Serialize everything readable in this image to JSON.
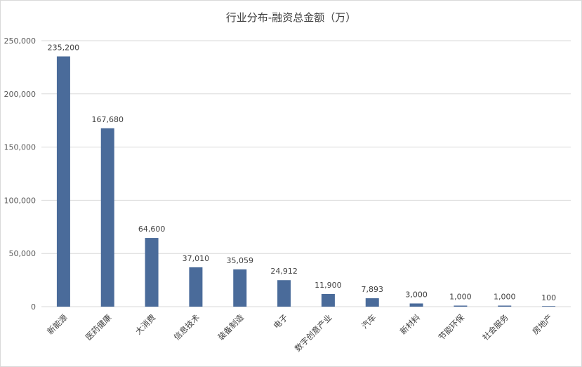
{
  "chart_data": {
    "type": "bar",
    "title": "行业分布-融资总金额（万）",
    "categories": [
      "新能源",
      "医药健康",
      "大消费",
      "信息技术",
      "装备制造",
      "电子",
      "数字创意产业",
      "汽车",
      "新材料",
      "节能环保",
      "社会服务",
      "房地产"
    ],
    "values": [
      235200,
      167680,
      64600,
      37010,
      35059,
      24912,
      11900,
      7893,
      3000,
      1000,
      1000,
      100
    ],
    "value_labels": [
      "235,200",
      "167,680",
      "64,600",
      "37,010",
      "35,059",
      "24,912",
      "11,900",
      "7,893",
      "3,000",
      "1,000",
      "1,000",
      "100"
    ],
    "yticks": [
      0,
      50000,
      100000,
      150000,
      200000,
      250000
    ],
    "ytick_labels": [
      "0",
      "50,000",
      "100,000",
      "150,000",
      "200,000",
      "250,000"
    ],
    "ylim": [
      0,
      250000
    ],
    "xlabel": "",
    "ylabel": "",
    "grid": true,
    "bar_color": "#4a6b9a",
    "grid_color": "#d9d9d9"
  }
}
